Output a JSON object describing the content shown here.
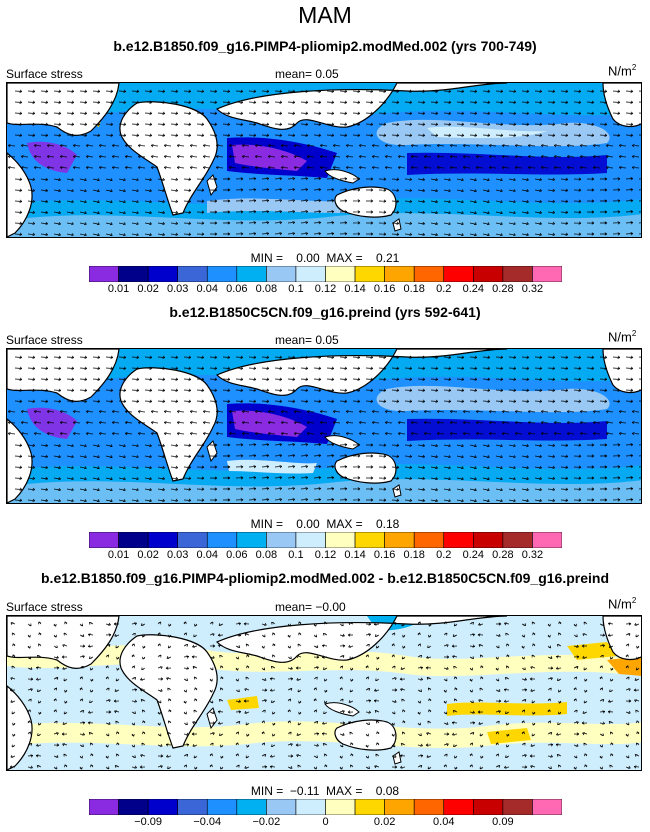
{
  "season": "MAM",
  "variable_label": "Surface stress",
  "units_base": "N/m",
  "units_exp": "2",
  "panels": [
    {
      "title": "b.e12.B1850.f09_g16.PIMP4-pliomip2.modMed.002 (yrs 700-749)",
      "mean_text": "mean=   0.05",
      "minmax_text": "MIN =    0.00  MAX =    0.21",
      "colorbar_labels": [
        "0.01",
        "0.02",
        "0.03",
        "0.04",
        "0.06",
        "0.08",
        "0.1",
        "0.12",
        "0.14",
        "0.16",
        "0.18",
        "0.2",
        "0.24",
        "0.28",
        "0.32"
      ]
    },
    {
      "title": "b.e12.B1850C5CN.f09_g16.preind (yrs 592-641)",
      "mean_text": "mean=   0.05",
      "minmax_text": "MIN =    0.00  MAX =    0.18",
      "colorbar_labels": [
        "0.01",
        "0.02",
        "0.03",
        "0.04",
        "0.06",
        "0.08",
        "0.1",
        "0.12",
        "0.14",
        "0.16",
        "0.18",
        "0.2",
        "0.24",
        "0.28",
        "0.32"
      ]
    },
    {
      "title": "b.e12.B1850.f09_g16.PIMP4-pliomip2.modMed.002 - b.e12.B1850C5CN.f09_g16.preind",
      "mean_text": "mean=  −0.00",
      "minmax_text": "MIN =  −0.11  MAX =    0.08",
      "colorbar_labels": [
        "−0.09",
        "−0.04",
        "−0.02",
        "0",
        "0.02",
        "0.04",
        "0.09"
      ]
    }
  ],
  "colors": {
    "abs_scale": [
      "#8a2be2",
      "#00008b",
      "#0000cd",
      "#3a66d8",
      "#1e90ff",
      "#00b0f0",
      "#99c8f5",
      "#cfeefd",
      "#ffffc0",
      "#ffd700",
      "#ffa500",
      "#ff6600",
      "#ff0000",
      "#c80000",
      "#a52a2a",
      "#ff69b4"
    ],
    "diff_scale": [
      "#8a2be2",
      "#00008b",
      "#0000cd",
      "#3a66d8",
      "#1e90ff",
      "#00b0f0",
      "#99c8f5",
      "#cfeefd",
      "#ffffc0",
      "#ffd700",
      "#ffa500",
      "#ff6600",
      "#ff0000",
      "#c80000",
      "#a52a2a",
      "#ff69b4"
    ],
    "land": "#ffffff",
    "vector": "#000000"
  }
}
